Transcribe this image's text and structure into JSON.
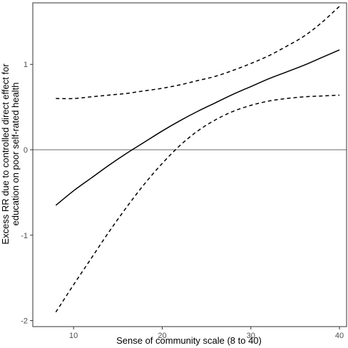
{
  "chart_data": {
    "type": "line",
    "title": "",
    "xlabel": "Sense of community scale (8 to 40)",
    "ylabel_lines": [
      "Excess RR due to controlled direct effect for",
      "education on poor self-rated health"
    ],
    "xlim": [
      5.4,
      40.8
    ],
    "ylim": [
      -2.07,
      1.72
    ],
    "x_ticks": [
      10,
      20,
      30,
      40
    ],
    "x_tick_labels": [
      "10",
      "20",
      "30",
      "40"
    ],
    "y_ticks": [
      -2,
      -1,
      0,
      1
    ],
    "y_tick_labels": [
      "-2",
      "-1",
      "0",
      "1"
    ],
    "reference_line_y": 0,
    "grid": false,
    "series": [
      {
        "role": "estimate",
        "style": "solid",
        "x": [
          8,
          10,
          12,
          14,
          16,
          18,
          20,
          22,
          24,
          26,
          28,
          30,
          32,
          34,
          36,
          38,
          40
        ],
        "y": [
          -0.65,
          -0.48,
          -0.33,
          -0.18,
          -0.04,
          0.09,
          0.22,
          0.34,
          0.45,
          0.55,
          0.65,
          0.74,
          0.83,
          0.91,
          0.99,
          1.08,
          1.17
        ]
      },
      {
        "role": "upper-ci",
        "style": "dashed",
        "x": [
          8,
          10,
          12,
          14,
          16,
          18,
          20,
          22,
          24,
          26,
          28,
          30,
          32,
          34,
          36,
          38,
          40
        ],
        "y": [
          0.6,
          0.6,
          0.62,
          0.64,
          0.66,
          0.69,
          0.72,
          0.76,
          0.81,
          0.86,
          0.93,
          1.01,
          1.1,
          1.21,
          1.33,
          1.49,
          1.68
        ]
      },
      {
        "role": "lower-ci",
        "style": "dashed",
        "x": [
          8,
          10,
          12,
          14,
          16,
          18,
          20,
          22,
          24,
          26,
          28,
          30,
          32,
          34,
          36,
          38,
          40
        ],
        "y": [
          -1.9,
          -1.58,
          -1.27,
          -0.96,
          -0.67,
          -0.4,
          -0.16,
          0.05,
          0.22,
          0.35,
          0.45,
          0.52,
          0.57,
          0.6,
          0.62,
          0.63,
          0.64
        ]
      }
    ]
  },
  "colors": {
    "line": "#000000",
    "reference": "#888888",
    "panel_border": "#333333",
    "tick": "#333333",
    "tick_label": "#4d4d4d"
  }
}
